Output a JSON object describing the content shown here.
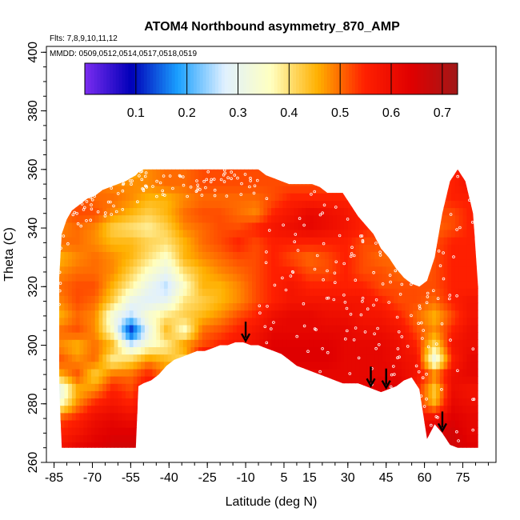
{
  "chart_data": {
    "type": "heatmap",
    "title": "ATOM4 Northbound asymmetry_870_AMP",
    "flights_label": "Flts: 7,8,9,10,11,12",
    "dates_label": "MMDD: 0509,0512,0514,0517,0518,0519",
    "xlabel": "Latitude (deg N)",
    "ylabel": "Theta (C)",
    "xlim": [
      -88,
      88
    ],
    "ylim": [
      260,
      402
    ],
    "x_ticks": [
      -85,
      -70,
      -55,
      -40,
      -25,
      -10,
      5,
      15,
      30,
      45,
      60,
      75
    ],
    "y_ticks": [
      260,
      280,
      300,
      320,
      340,
      360,
      380,
      400
    ],
    "colorbar": {
      "range": [
        0.0,
        0.73
      ],
      "ticks": [
        0.1,
        0.2,
        0.3,
        0.4,
        0.5,
        0.6,
        0.7
      ],
      "tick_labels": [
        "0.1",
        "0.2",
        "0.3",
        "0.4",
        "0.5",
        "0.6",
        "0.7"
      ],
      "colors": [
        "#7b2cf0",
        "#0000b8",
        "#1aa0ff",
        "#e0f0ff",
        "#ffffc0",
        "#ffb000",
        "#ff2000",
        "#e00000",
        "#a01818"
      ]
    },
    "arrows_lat": [
      -10,
      39,
      45,
      67
    ],
    "boundary": {
      "lat": [
        -83,
        -82,
        -80,
        -78,
        -75,
        -72,
        -69,
        -66,
        -63,
        -60,
        -57,
        -55,
        -53,
        -52,
        -50,
        -47,
        -44,
        -41,
        -38,
        -35,
        -32,
        -29,
        -26,
        -23,
        -20,
        -17,
        -14,
        -11,
        -8,
        -5,
        -2,
        1,
        4,
        7,
        10,
        13,
        16,
        19,
        22,
        25,
        28,
        31,
        34,
        37,
        40,
        43,
        46,
        49,
        52,
        55,
        58,
        61,
        64,
        67,
        70,
        73,
        76,
        79,
        81
      ],
      "bottom": [
        286,
        265,
        265,
        265,
        265,
        265,
        265,
        265,
        265,
        265,
        265,
        265,
        265,
        286,
        287,
        288,
        290,
        293,
        295,
        296,
        297,
        298,
        298,
        299,
        300,
        300,
        301,
        301,
        300,
        300,
        299,
        298,
        297,
        295,
        293,
        292,
        291,
        290,
        289,
        288,
        287,
        287,
        287,
        286,
        285,
        284,
        285,
        286,
        288,
        289,
        285,
        268,
        273,
        270,
        266,
        265,
        265,
        265,
        265
      ],
      "top": [
        323,
        338,
        343,
        346,
        348,
        350,
        351,
        353,
        354,
        355,
        356,
        357,
        358,
        359,
        360,
        360,
        360,
        360,
        360,
        360,
        360,
        360,
        360,
        360,
        360,
        360,
        360,
        360,
        360,
        360,
        358,
        357,
        356,
        355,
        355,
        355,
        355,
        354,
        352,
        352,
        352,
        348,
        344,
        341,
        338,
        333,
        330,
        326,
        323,
        321,
        320,
        322,
        330,
        345,
        356,
        360,
        356,
        345,
        320
      ]
    },
    "field": {
      "lat": [
        -83,
        -76,
        -69,
        -62,
        -55,
        -48,
        -41,
        -34,
        -27,
        -20,
        -13,
        -6,
        1,
        8,
        15,
        22,
        29,
        36,
        43,
        50,
        57,
        64,
        71,
        78
      ],
      "theta": [
        265,
        270,
        275,
        280,
        285,
        290,
        295,
        300,
        305,
        310,
        315,
        320,
        325,
        330,
        335,
        340,
        345,
        350,
        355,
        360
      ],
      "values": [
        [
          0.58,
          0.62,
          0.64,
          0.66,
          0.66,
          0.68,
          0.68,
          0.68,
          0.68,
          0.68,
          0.68,
          0.68,
          0.68,
          0.68,
          0.68,
          0.68,
          0.68,
          0.68,
          0.68,
          0.68,
          0.68,
          0.66,
          0.66,
          0.64
        ],
        [
          0.55,
          0.58,
          0.62,
          0.64,
          0.64,
          0.66,
          0.66,
          0.66,
          0.66,
          0.66,
          0.66,
          0.66,
          0.66,
          0.66,
          0.66,
          0.66,
          0.66,
          0.66,
          0.68,
          0.66,
          0.62,
          0.64,
          0.66,
          0.62
        ],
        [
          0.52,
          0.55,
          0.6,
          0.62,
          0.6,
          0.62,
          0.64,
          0.64,
          0.64,
          0.64,
          0.64,
          0.64,
          0.64,
          0.64,
          0.64,
          0.64,
          0.64,
          0.64,
          0.66,
          0.66,
          0.58,
          0.6,
          0.64,
          0.62
        ],
        [
          0.35,
          0.48,
          0.55,
          0.58,
          0.55,
          0.6,
          0.62,
          0.62,
          0.62,
          0.62,
          0.62,
          0.62,
          0.62,
          0.62,
          0.62,
          0.62,
          0.62,
          0.62,
          0.64,
          0.64,
          0.55,
          0.45,
          0.62,
          0.6
        ],
        [
          0.28,
          0.45,
          0.48,
          0.55,
          0.52,
          0.58,
          0.62,
          0.62,
          0.62,
          0.62,
          0.62,
          0.62,
          0.62,
          0.62,
          0.62,
          0.62,
          0.62,
          0.62,
          0.64,
          0.64,
          0.55,
          0.42,
          0.6,
          0.58
        ],
        [
          0.45,
          0.52,
          0.42,
          0.5,
          0.5,
          0.55,
          0.48,
          0.62,
          0.62,
          0.62,
          0.62,
          0.62,
          0.62,
          0.62,
          0.62,
          0.62,
          0.62,
          0.62,
          0.62,
          0.62,
          0.58,
          0.5,
          0.6,
          0.62
        ],
        [
          0.52,
          0.48,
          0.5,
          0.38,
          0.42,
          0.48,
          0.45,
          0.4,
          0.62,
          0.62,
          0.62,
          0.64,
          0.64,
          0.64,
          0.64,
          0.64,
          0.62,
          0.62,
          0.62,
          0.6,
          0.58,
          0.3,
          0.55,
          0.62
        ],
        [
          0.48,
          0.45,
          0.5,
          0.45,
          0.28,
          0.35,
          0.38,
          0.48,
          0.52,
          0.55,
          0.58,
          0.6,
          0.64,
          0.64,
          0.64,
          0.64,
          0.62,
          0.62,
          0.62,
          0.6,
          0.55,
          0.4,
          0.58,
          0.6
        ],
        [
          0.5,
          0.52,
          0.48,
          0.35,
          0.1,
          0.3,
          0.45,
          0.35,
          0.5,
          0.52,
          0.55,
          0.58,
          0.62,
          0.62,
          0.62,
          0.62,
          0.62,
          0.6,
          0.6,
          0.58,
          0.52,
          0.48,
          0.55,
          0.6
        ],
        [
          0.45,
          0.5,
          0.48,
          0.32,
          0.25,
          0.35,
          0.4,
          0.42,
          0.45,
          0.48,
          0.52,
          0.55,
          0.6,
          0.62,
          0.62,
          0.6,
          0.6,
          0.58,
          0.58,
          0.55,
          0.5,
          0.45,
          0.52,
          0.58
        ],
        [
          0.48,
          0.52,
          0.5,
          0.42,
          0.3,
          0.28,
          0.3,
          0.4,
          0.42,
          0.45,
          0.48,
          0.52,
          0.55,
          0.58,
          0.58,
          0.58,
          0.58,
          0.58,
          0.55,
          0.52,
          0.52,
          0.5,
          0.55,
          0.58
        ],
        [
          0.5,
          0.52,
          0.52,
          0.45,
          0.38,
          0.3,
          0.25,
          0.35,
          0.45,
          0.45,
          0.48,
          0.52,
          0.55,
          0.58,
          0.55,
          0.55,
          0.55,
          0.55,
          0.52,
          0.52,
          0.52,
          0.52,
          0.55,
          0.55
        ],
        [
          0.48,
          0.5,
          0.5,
          0.48,
          0.42,
          0.35,
          0.3,
          0.4,
          0.45,
          0.48,
          0.5,
          0.52,
          0.55,
          0.55,
          0.52,
          0.52,
          0.55,
          0.52,
          0.52,
          0.5,
          0.5,
          0.52,
          0.55,
          0.55
        ],
        [
          0.45,
          0.48,
          0.5,
          0.48,
          0.45,
          0.4,
          0.35,
          0.45,
          0.48,
          0.5,
          0.52,
          0.52,
          0.55,
          0.52,
          0.5,
          0.52,
          0.55,
          0.52,
          0.5,
          0.5,
          0.5,
          0.52,
          0.55,
          0.55
        ],
        [
          0.5,
          0.5,
          0.48,
          0.45,
          0.45,
          0.42,
          0.4,
          0.45,
          0.5,
          0.52,
          0.55,
          0.52,
          0.55,
          0.55,
          0.55,
          0.55,
          0.55,
          0.52,
          0.52,
          0.5,
          0.52,
          0.52,
          0.55,
          0.55
        ],
        [
          0.48,
          0.5,
          0.48,
          0.42,
          0.4,
          0.38,
          0.42,
          0.48,
          0.5,
          0.52,
          0.52,
          0.55,
          0.58,
          0.6,
          0.62,
          0.6,
          0.58,
          0.55,
          0.52,
          0.52,
          0.52,
          0.5,
          0.52,
          0.55
        ],
        [
          0.5,
          0.52,
          0.52,
          0.48,
          0.45,
          0.42,
          0.45,
          0.5,
          0.52,
          0.52,
          0.5,
          0.48,
          0.55,
          0.58,
          0.62,
          0.6,
          0.58,
          0.55,
          0.55,
          0.52,
          0.52,
          0.52,
          0.52,
          0.55
        ],
        [
          0.52,
          0.52,
          0.5,
          0.5,
          0.48,
          0.45,
          0.45,
          0.48,
          0.5,
          0.5,
          0.5,
          0.5,
          0.52,
          0.55,
          0.55,
          0.55,
          0.55,
          0.52,
          0.52,
          0.52,
          0.52,
          0.52,
          0.55,
          0.55
        ],
        [
          0.52,
          0.52,
          0.5,
          0.48,
          0.48,
          0.48,
          0.5,
          0.5,
          0.52,
          0.52,
          0.52,
          0.52,
          0.52,
          0.52,
          0.52,
          0.52,
          0.52,
          0.52,
          0.52,
          0.52,
          0.52,
          0.52,
          0.55,
          0.58
        ],
        [
          0.5,
          0.5,
          0.48,
          0.45,
          0.45,
          0.48,
          0.5,
          0.5,
          0.52,
          0.52,
          0.52,
          0.52,
          0.52,
          0.52,
          0.52,
          0.52,
          0.52,
          0.52,
          0.52,
          0.52,
          0.52,
          0.52,
          0.55,
          0.58
        ]
      ]
    },
    "legend": "top-center colorbar"
  }
}
